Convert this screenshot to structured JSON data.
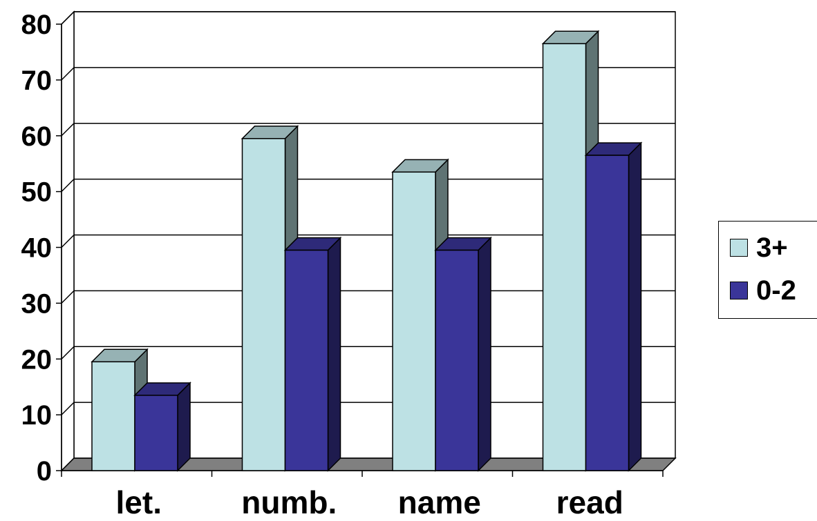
{
  "chart_data": {
    "type": "bar",
    "title": "",
    "xlabel": "",
    "ylabel": "",
    "categories": [
      "let.",
      "numb.",
      "name",
      "read"
    ],
    "series": [
      {
        "name": "3+",
        "values": [
          19.5,
          59.5,
          53.5,
          76.5
        ],
        "color": "#bde1e4"
      },
      {
        "name": "0-2",
        "values": [
          13.5,
          39.5,
          39.5,
          56.5
        ],
        "color": "#3a3599"
      }
    ],
    "ylim": [
      0,
      80
    ],
    "yticks": [
      "0",
      "10",
      "20",
      "30",
      "40",
      "50",
      "60",
      "70",
      "80"
    ],
    "grid": true,
    "legend_position": "right",
    "style": "3d-clustered-column"
  }
}
